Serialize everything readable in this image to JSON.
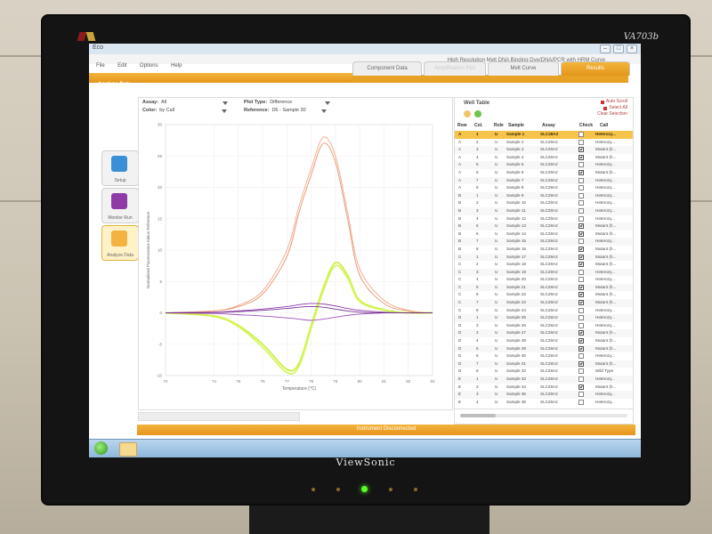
{
  "monitor": {
    "brand": "ViewSonic",
    "model": "VA703b"
  },
  "app": {
    "window_title": "Eco",
    "menu": [
      "File",
      "Edit",
      "Options",
      "Help"
    ],
    "subtitle": "High Resolution Melt DNA Binding Dye/DNA/PCR with HRM Curve",
    "section": "Analyze Data",
    "tabs": [
      {
        "label": "Component Data",
        "active": false
      },
      {
        "label": "Amplification Plot",
        "active": false
      },
      {
        "label": "Melt Curve",
        "active": false
      },
      {
        "label": "Results",
        "active": true
      }
    ],
    "nav": [
      {
        "label": "Setup",
        "icon": "grid-icon"
      },
      {
        "label": "Monitor Run",
        "icon": "eye-icon"
      },
      {
        "label": "Analyze Data",
        "icon": "magnifier-icon"
      }
    ]
  },
  "plot_controls": {
    "assay_label": "Assay:",
    "assay_value": "All",
    "color_label": "Color:",
    "color_value": "by Call",
    "plot_type_label": "Plot Type:",
    "plot_type_value": "Difference",
    "reference_label": "Reference:",
    "reference_value": "D6 - Sample 30"
  },
  "chart_data": {
    "type": "line",
    "title": "",
    "xlabel": "Temperature (°C)",
    "ylabel": "Normalized Fluorescence minus Reference",
    "xlim": [
      72,
      83
    ],
    "ylim": [
      -10,
      30
    ],
    "x_ticks": [
      72,
      74,
      75,
      76,
      77,
      78,
      79,
      80,
      81,
      82,
      83
    ],
    "y_ticks": [
      -10,
      -5,
      0,
      5,
      10,
      15,
      20,
      25,
      30
    ],
    "grid": true,
    "series": [
      {
        "color": "#e88a64",
        "x": [
          72,
          74,
          75,
          76,
          77,
          77.5,
          78,
          78.5,
          79,
          79.5,
          80,
          81,
          82,
          83
        ],
        "y": [
          0,
          0.3,
          1,
          3,
          9,
          16,
          22,
          27,
          24,
          15,
          6,
          1.5,
          0.3,
          0
        ]
      },
      {
        "color": "#f1a47f",
        "x": [
          72,
          74,
          75,
          76,
          77,
          77.5,
          78,
          78.5,
          79,
          79.5,
          80,
          81,
          82,
          83
        ],
        "y": [
          0,
          0.3,
          1.2,
          3.5,
          10,
          17,
          23,
          28,
          25,
          16,
          7,
          2,
          0.4,
          0
        ]
      },
      {
        "color": "#c8f03c",
        "x": [
          72,
          74,
          75,
          76,
          77,
          77.5,
          78,
          78.5,
          79,
          79.5,
          80,
          81,
          82,
          83
        ],
        "y": [
          0,
          -0.5,
          -2,
          -5,
          -9,
          -8,
          -2,
          4,
          8,
          6,
          2,
          0.5,
          0,
          0
        ]
      },
      {
        "color": "#d6f55a",
        "x": [
          72,
          74,
          75,
          76,
          77,
          77.5,
          78,
          78.5,
          79,
          79.5,
          80,
          81,
          82,
          83
        ],
        "y": [
          0,
          -0.6,
          -2.2,
          -5.5,
          -9.5,
          -8.5,
          -2.5,
          3.5,
          7.5,
          5.5,
          1.8,
          0.4,
          0,
          0
        ]
      },
      {
        "color": "#8b2fa8",
        "x": [
          72,
          74,
          75,
          76,
          77,
          77.5,
          78,
          78.5,
          79,
          79.5,
          80,
          81,
          82,
          83
        ],
        "y": [
          0,
          0.1,
          0.3,
          0.6,
          1.0,
          1.3,
          1.5,
          1.4,
          1.1,
          0.7,
          0.4,
          0.1,
          0,
          0
        ]
      },
      {
        "color": "#9a47b8",
        "x": [
          72,
          74,
          75,
          76,
          77,
          77.5,
          78,
          78.5,
          79,
          79.5,
          80,
          81,
          82,
          83
        ],
        "y": [
          0,
          -0.1,
          -0.3,
          -0.5,
          -0.8,
          -1.0,
          -1.2,
          -1.0,
          -0.7,
          -0.4,
          -0.2,
          0,
          0,
          0
        ]
      },
      {
        "color": "#6f2a8f",
        "x": [
          72,
          74,
          75,
          76,
          77,
          77.5,
          78,
          78.5,
          79,
          79.5,
          80,
          81,
          82,
          83
        ],
        "y": [
          0,
          0.05,
          0.2,
          0.4,
          0.7,
          0.9,
          1.0,
          0.9,
          0.6,
          0.3,
          0.1,
          0,
          0,
          0
        ]
      }
    ]
  },
  "well_table": {
    "title": "Well Table",
    "auto_scroll": "Auto Scroll",
    "select_all": "Select All",
    "clear_selection": "Clear Selection",
    "columns": [
      "Row",
      "Col.",
      "Role",
      "Sample",
      "Assay",
      "Check",
      "Call"
    ],
    "rows": [
      [
        "A",
        "1",
        "U",
        "Sample 1",
        "SLC28A2",
        false,
        "Heterozy..."
      ],
      [
        "A",
        "2",
        "U",
        "Sample 2",
        "SLC28A2",
        false,
        "Heterozy..."
      ],
      [
        "A",
        "3",
        "U",
        "Sample 3",
        "SLC28A2",
        true,
        "Mutant (h..."
      ],
      [
        "A",
        "4",
        "U",
        "Sample 4",
        "SLC28A2",
        true,
        "Mutant (h..."
      ],
      [
        "A",
        "5",
        "U",
        "Sample 5",
        "SLC28A2",
        false,
        "Heterozy..."
      ],
      [
        "A",
        "6",
        "U",
        "Sample 6",
        "SLC28A2",
        true,
        "Mutant (h..."
      ],
      [
        "A",
        "7",
        "U",
        "Sample 7",
        "SLC28A2",
        false,
        "Heterozy..."
      ],
      [
        "A",
        "8",
        "U",
        "Sample 8",
        "SLC28A2",
        false,
        "Heterozy..."
      ],
      [
        "B",
        "1",
        "U",
        "Sample 9",
        "SLC28A2",
        false,
        "Heterozy..."
      ],
      [
        "B",
        "2",
        "U",
        "Sample 10",
        "SLC28A2",
        false,
        "Heterozy..."
      ],
      [
        "B",
        "3",
        "U",
        "Sample 11",
        "SLC28A2",
        false,
        "Heterozy..."
      ],
      [
        "B",
        "4",
        "U",
        "Sample 12",
        "SLC28A2",
        false,
        "Heterozy..."
      ],
      [
        "B",
        "5",
        "U",
        "Sample 13",
        "SLC28A2",
        true,
        "Mutant (h..."
      ],
      [
        "B",
        "6",
        "U",
        "Sample 14",
        "SLC28A2",
        true,
        "Mutant (h..."
      ],
      [
        "B",
        "7",
        "U",
        "Sample 15",
        "SLC28A2",
        false,
        "Heterozy..."
      ],
      [
        "B",
        "8",
        "U",
        "Sample 16",
        "SLC28A2",
        true,
        "Mutant (h..."
      ],
      [
        "C",
        "1",
        "U",
        "Sample 17",
        "SLC28A2",
        true,
        "Mutant (h..."
      ],
      [
        "C",
        "2",
        "U",
        "Sample 18",
        "SLC28A2",
        true,
        "Mutant (h..."
      ],
      [
        "C",
        "3",
        "U",
        "Sample 19",
        "SLC28A2",
        false,
        "Heterozy..."
      ],
      [
        "C",
        "4",
        "U",
        "Sample 20",
        "SLC28A2",
        false,
        "Heterozy..."
      ],
      [
        "C",
        "5",
        "U",
        "Sample 21",
        "SLC28A2",
        true,
        "Mutant (h..."
      ],
      [
        "C",
        "6",
        "U",
        "Sample 22",
        "SLC28A2",
        true,
        "Mutant (h..."
      ],
      [
        "C",
        "7",
        "U",
        "Sample 23",
        "SLC28A2",
        true,
        "Mutant (h..."
      ],
      [
        "C",
        "8",
        "U",
        "Sample 24",
        "SLC28A2",
        false,
        "Heterozy..."
      ],
      [
        "D",
        "1",
        "U",
        "Sample 25",
        "SLC28A2",
        false,
        "Heterozy..."
      ],
      [
        "D",
        "2",
        "U",
        "Sample 26",
        "SLC28A2",
        false,
        "Heterozy..."
      ],
      [
        "D",
        "3",
        "U",
        "Sample 27",
        "SLC28A2",
        true,
        "Mutant (h..."
      ],
      [
        "D",
        "4",
        "U",
        "Sample 28",
        "SLC28A2",
        true,
        "Mutant (h..."
      ],
      [
        "D",
        "5",
        "U",
        "Sample 29",
        "SLC28A2",
        true,
        "Mutant (h..."
      ],
      [
        "D",
        "6",
        "U",
        "Sample 30",
        "SLC28A2",
        false,
        "Heterozy..."
      ],
      [
        "D",
        "7",
        "U",
        "Sample 31",
        "SLC28A2",
        true,
        "Mutant (h..."
      ],
      [
        "D",
        "8",
        "U",
        "Sample 32",
        "SLC28A2",
        false,
        "Wild Type"
      ],
      [
        "E",
        "1",
        "U",
        "Sample 33",
        "SLC28A2",
        false,
        "Heterozy..."
      ],
      [
        "E",
        "2",
        "U",
        "Sample 34",
        "SLC28A2",
        true,
        "Mutant (h..."
      ],
      [
        "E",
        "3",
        "U",
        "Sample 35",
        "SLC28A2",
        false,
        "Heterozy..."
      ],
      [
        "E",
        "4",
        "U",
        "Sample 36",
        "SLC28A2",
        false,
        "Heterozy..."
      ]
    ],
    "selected_row": 0
  },
  "status": {
    "message": "Instrument Disconnected"
  },
  "colors": {
    "accent": "#f0ab2f",
    "accent_dark": "#e4961c"
  }
}
